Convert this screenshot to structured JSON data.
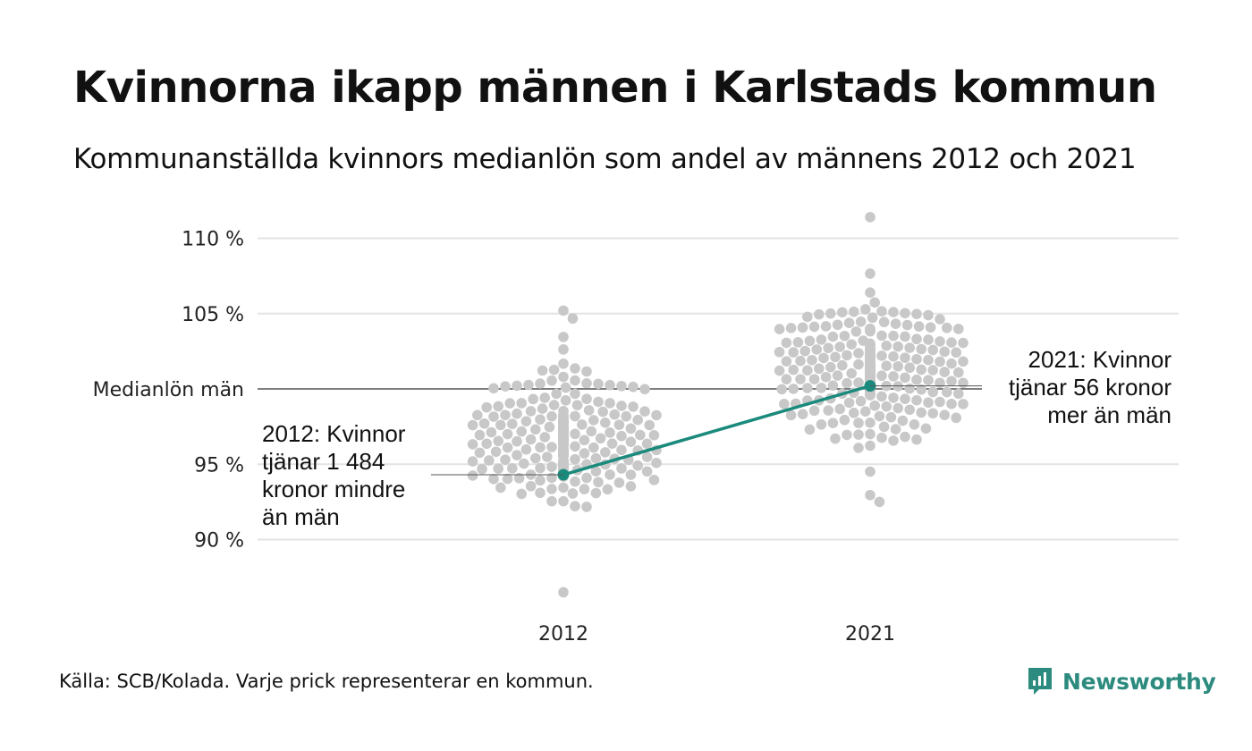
{
  "title": "Kvinnorna ikapp männen i Karlstads kommun",
  "subtitle": "Kommunanställda kvinnors medianlön som andel av männens 2012 och 2021",
  "source": "Källa: SCB/Kolada. Varje prick representerar en kommun.",
  "brand": {
    "name": "Newsworthy",
    "icon": "newsworthy-logo-icon",
    "color": "#2c8b7e"
  },
  "colors": {
    "dots": "#c8c8c8",
    "highlight": "#1a8a7c",
    "grid": "#e3e3e3",
    "reference": "#333333"
  },
  "chart_data": {
    "type": "scatter",
    "subtype": "beeswarm",
    "title": "Kvinnorna ikapp männen i Karlstads kommun",
    "subtitle": "Kommunanställda kvinnors medianlön som andel av männens 2012 och 2021",
    "categories": [
      "2012",
      "2021"
    ],
    "ylim": [
      86,
      111.5
    ],
    "y_ticks": [
      {
        "value": 90,
        "label": "90 %"
      },
      {
        "value": 95,
        "label": "95 %"
      },
      {
        "value": 100,
        "label": "Medianlön män"
      },
      {
        "value": 105,
        "label": "105 %"
      },
      {
        "value": 110,
        "label": "110 %"
      }
    ],
    "grid": true,
    "distributions": [
      {
        "category": "2012",
        "min": 86.5,
        "max": 105.2,
        "center": 96.5,
        "spread": 2.1,
        "count": 290,
        "label": "Varje prick representerar en kommun"
      },
      {
        "category": "2021",
        "min": 92.5,
        "max": 111.4,
        "center": 101.5,
        "spread": 2.0,
        "count": 290,
        "label": "Varje prick representerar en kommun"
      }
    ],
    "highlight": {
      "name": "Karlstads kommun",
      "points": [
        {
          "x": "2012",
          "y": 94.3
        },
        {
          "x": "2021",
          "y": 100.2
        }
      ]
    },
    "annotations": [
      {
        "x": "2012",
        "lines": [
          "2012: Kvinnor",
          "tjänar 1 484",
          "kronor mindre",
          "än män"
        ]
      },
      {
        "x": "2021",
        "lines": [
          "2021: Kvinnor",
          "tjänar 56 kronor",
          "mer än män"
        ]
      }
    ]
  }
}
